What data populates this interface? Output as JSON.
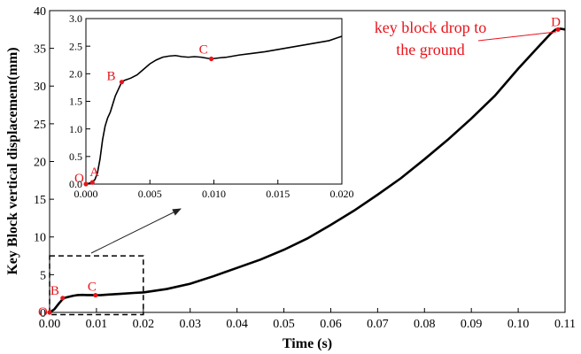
{
  "colors": {
    "curve": "#000000",
    "point": "#e8141b",
    "annotation": "#e8141b",
    "arrow": "#222222"
  },
  "chart_data": [
    {
      "type": "line",
      "xlabel": "Time (s)",
      "ylabel": "Key Block vertical displacement(mm)",
      "xlim": [
        0,
        0.11
      ],
      "ylim": [
        0,
        40
      ],
      "x_ticks": [
        "0.00",
        "0.01",
        "0.02",
        "0.03",
        "0.04",
        "0.05",
        "0.06",
        "0.07",
        "0.08",
        "0.09",
        "0.10",
        "0.11"
      ],
      "y_ticks": [
        "0",
        "5",
        "10",
        "15",
        "20",
        "25",
        "30",
        "35",
        "40"
      ],
      "series": [
        {
          "x": [
            0,
            0.001,
            0.002,
            0.003,
            0.004,
            0.005,
            0.006,
            0.007,
            0.008,
            0.009,
            0.0098,
            0.011,
            0.013,
            0.015,
            0.018,
            0.02,
            0.025,
            0.03,
            0.035,
            0.04,
            0.045,
            0.05,
            0.055,
            0.06,
            0.065,
            0.07,
            0.075,
            0.08,
            0.085,
            0.09,
            0.095,
            0.1,
            0.104,
            0.107,
            0.108,
            0.109,
            0.11
          ],
          "y": [
            0,
            0.4,
            1.2,
            1.9,
            2.05,
            2.2,
            2.3,
            2.32,
            2.3,
            2.29,
            2.28,
            2.3,
            2.38,
            2.45,
            2.58,
            2.65,
            3.1,
            3.8,
            4.8,
            5.9,
            7.0,
            8.3,
            9.8,
            11.6,
            13.5,
            15.6,
            17.8,
            20.3,
            22.9,
            25.7,
            28.7,
            32.3,
            35.0,
            37.0,
            37.5,
            37.6,
            37.5
          ]
        }
      ],
      "points": [
        {
          "label": "O",
          "x": 0,
          "y": 0
        },
        {
          "label": "B",
          "x": 0.0028,
          "y": 1.9
        },
        {
          "label": "C",
          "x": 0.0098,
          "y": 2.28
        },
        {
          "label": "D",
          "x": 0.1085,
          "y": 37.5
        }
      ],
      "annotation": {
        "lines": [
          "key block drop to",
          "the ground"
        ]
      },
      "zoom_box": {
        "x": [
          0,
          0.02
        ],
        "y": [
          -0.3,
          7.5
        ]
      }
    },
    {
      "type": "line",
      "inset": true,
      "xlim": [
        0,
        0.02
      ],
      "ylim": [
        0,
        3.0
      ],
      "x_ticks": [
        "0.000",
        "0.005",
        "0.010",
        "0.015",
        "0.020"
      ],
      "y_ticks": [
        "0.0",
        "0.5",
        "1.0",
        "1.5",
        "2.0",
        "2.5",
        "3.0"
      ],
      "series": [
        {
          "x": [
            0,
            0.0003,
            0.0005,
            0.0007,
            0.0009,
            0.0011,
            0.0013,
            0.0015,
            0.0017,
            0.0019,
            0.0021,
            0.0023,
            0.0025,
            0.0027,
            0.0028,
            0.003,
            0.0035,
            0.004,
            0.0045,
            0.005,
            0.0055,
            0.006,
            0.0065,
            0.007,
            0.0075,
            0.008,
            0.0085,
            0.009,
            0.0095,
            0.0098,
            0.0105,
            0.011,
            0.012,
            0.013,
            0.014,
            0.015,
            0.016,
            0.017,
            0.018,
            0.019,
            0.02
          ],
          "y": [
            0.0,
            0.02,
            0.04,
            0.08,
            0.2,
            0.45,
            0.8,
            1.05,
            1.2,
            1.3,
            1.45,
            1.6,
            1.7,
            1.8,
            1.85,
            1.88,
            1.92,
            1.98,
            2.08,
            2.18,
            2.25,
            2.3,
            2.32,
            2.33,
            2.31,
            2.3,
            2.31,
            2.3,
            2.28,
            2.27,
            2.29,
            2.3,
            2.34,
            2.37,
            2.4,
            2.44,
            2.48,
            2.52,
            2.56,
            2.6,
            2.68
          ]
        }
      ],
      "points": [
        {
          "label": "O",
          "x": 0,
          "y": 0
        },
        {
          "label": "A",
          "x": 0.0005,
          "y": 0.03
        },
        {
          "label": "B",
          "x": 0.0028,
          "y": 1.85
        },
        {
          "label": "C",
          "x": 0.0098,
          "y": 2.27
        }
      ]
    }
  ]
}
